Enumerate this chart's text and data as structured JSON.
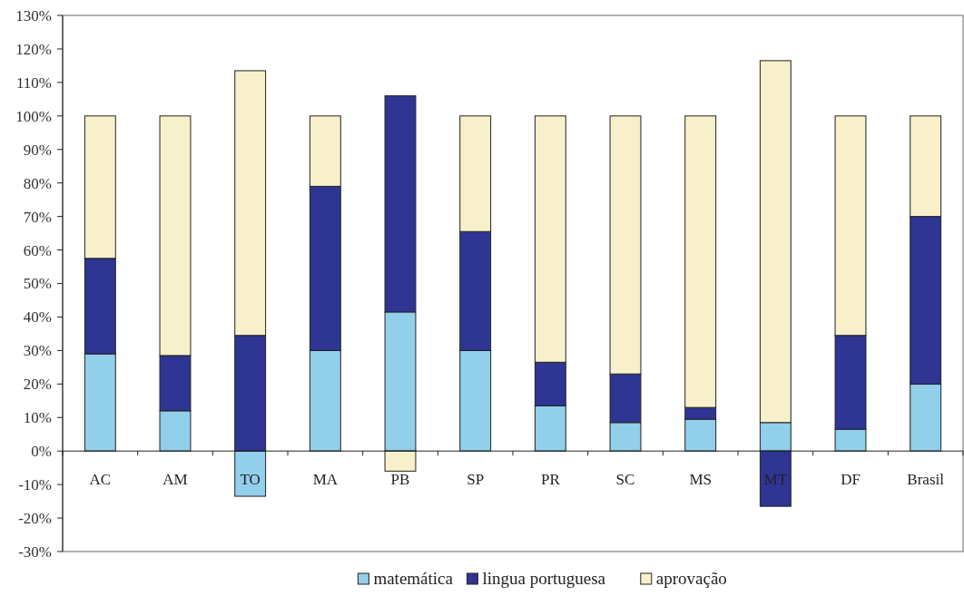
{
  "chart_data": {
    "type": "bar",
    "stacked": true,
    "categories": [
      "AC",
      "AM",
      "TO",
      "MA",
      "PB",
      "SP",
      "PR",
      "SC",
      "MS",
      "MT",
      "DF",
      "Brasil"
    ],
    "series": [
      {
        "name": "matemática",
        "color": "#92cfeb",
        "values": [
          29,
          12,
          -13.5,
          30,
          41.5,
          30,
          13.5,
          8.5,
          9.5,
          8.5,
          6.5,
          20
        ]
      },
      {
        "name": "lingua portuguesa",
        "color": "#2e3593",
        "values": [
          28.5,
          16.5,
          34.5,
          49,
          64.5,
          35.5,
          13,
          14.5,
          3.5,
          -16.5,
          28,
          50
        ]
      },
      {
        "name": "aprovação",
        "color": "#f8f0ca",
        "values": [
          42.5,
          71.5,
          79,
          21,
          -6,
          34.5,
          73.5,
          77,
          87,
          108,
          65.5,
          30
        ]
      }
    ],
    "ylim": [
      -30,
      130
    ],
    "yticks": [
      {
        "value": -30,
        "label": "-30%"
      },
      {
        "value": -20,
        "label": "-20%"
      },
      {
        "value": -10,
        "label": "-10%"
      },
      {
        "value": 0,
        "label": "0%"
      },
      {
        "value": 10,
        "label": "10%"
      },
      {
        "value": 20,
        "label": "20%"
      },
      {
        "value": 30,
        "label": "30%"
      },
      {
        "value": 40,
        "label": "40%"
      },
      {
        "value": 50,
        "label": "50%"
      },
      {
        "value": 60,
        "label": "60%"
      },
      {
        "value": 70,
        "label": "70%"
      },
      {
        "value": 80,
        "label": "80%"
      },
      {
        "value": 90,
        "label": "90%"
      },
      {
        "value": 100,
        "label": "100%"
      },
      {
        "value": 110,
        "label": "110%"
      },
      {
        "value": 120,
        "label": "120%"
      },
      {
        "value": 130,
        "label": "130%"
      }
    ],
    "grid": false,
    "legend": "bottom"
  }
}
